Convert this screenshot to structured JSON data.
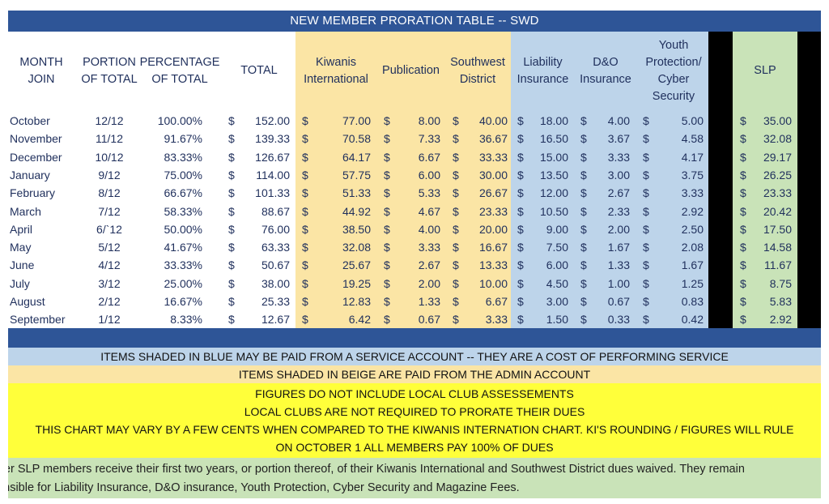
{
  "title": "NEW MEMBER PRORATION TABLE -- SWD",
  "headers": {
    "month": "MONTH JOIN",
    "portion": "PORTION OF TOTAL",
    "percentage": "PERCENTAGE OF TOTAL",
    "total": "TOTAL",
    "ki": "Kiwanis International",
    "pub": "Publication",
    "swd": "Southwest District",
    "liab": "Liability Insurance",
    "dno": "D&O Insurance",
    "youth": "Youth Protection/ Cyber Security",
    "slp": "SLP"
  },
  "currency_symbol": "$",
  "rows": [
    {
      "month": "October",
      "portion": "12/12",
      "pct": "100.00%",
      "total": "152.00",
      "ki": "77.00",
      "pub": "8.00",
      "swd": "40.00",
      "liab": "18.00",
      "dno": "4.00",
      "youth": "5.00",
      "slp": "35.00"
    },
    {
      "month": "November",
      "portion": "11/12",
      "pct": "91.67%",
      "total": "139.33",
      "ki": "70.58",
      "pub": "7.33",
      "swd": "36.67",
      "liab": "16.50",
      "dno": "3.67",
      "youth": "4.58",
      "slp": "32.08"
    },
    {
      "month": "December",
      "portion": "10/12",
      "pct": "83.33%",
      "total": "126.67",
      "ki": "64.17",
      "pub": "6.67",
      "swd": "33.33",
      "liab": "15.00",
      "dno": "3.33",
      "youth": "4.17",
      "slp": "29.17"
    },
    {
      "month": "January",
      "portion": "9/12",
      "pct": "75.00%",
      "total": "114.00",
      "ki": "57.75",
      "pub": "6.00",
      "swd": "30.00",
      "liab": "13.50",
      "dno": "3.00",
      "youth": "3.75",
      "slp": "26.25"
    },
    {
      "month": "February",
      "portion": "8/12",
      "pct": "66.67%",
      "total": "101.33",
      "ki": "51.33",
      "pub": "5.33",
      "swd": "26.67",
      "liab": "12.00",
      "dno": "2.67",
      "youth": "3.33",
      "slp": "23.33"
    },
    {
      "month": "March",
      "portion": "7/12",
      "pct": "58.33%",
      "total": "88.67",
      "ki": "44.92",
      "pub": "4.67",
      "swd": "23.33",
      "liab": "10.50",
      "dno": "2.33",
      "youth": "2.92",
      "slp": "20.42"
    },
    {
      "month": "April",
      "portion": "6/`12",
      "pct": "50.00%",
      "total": "76.00",
      "ki": "38.50",
      "pub": "4.00",
      "swd": "20.00",
      "liab": "9.00",
      "dno": "2.00",
      "youth": "2.50",
      "slp": "17.50"
    },
    {
      "month": "May",
      "portion": "5/12",
      "pct": "41.67%",
      "total": "63.33",
      "ki": "32.08",
      "pub": "3.33",
      "swd": "16.67",
      "liab": "7.50",
      "dno": "1.67",
      "youth": "2.08",
      "slp": "14.58"
    },
    {
      "month": "June",
      "portion": "4/12",
      "pct": "33.33%",
      "total": "50.67",
      "ki": "25.67",
      "pub": "2.67",
      "swd": "13.33",
      "liab": "6.00",
      "dno": "1.33",
      "youth": "1.67",
      "slp": "11.67"
    },
    {
      "month": "July",
      "portion": "3/12",
      "pct": "25.00%",
      "total": "38.00",
      "ki": "19.25",
      "pub": "2.00",
      "swd": "10.00",
      "liab": "4.50",
      "dno": "1.00",
      "youth": "1.25",
      "slp": "8.75"
    },
    {
      "month": "August",
      "portion": "2/12",
      "pct": "16.67%",
      "total": "25.33",
      "ki": "12.83",
      "pub": "1.33",
      "swd": "6.67",
      "liab": "3.00",
      "dno": "0.67",
      "youth": "0.83",
      "slp": "5.83"
    },
    {
      "month": "September",
      "portion": "1/12",
      "pct": "8.33%",
      "total": "12.67",
      "ki": "6.42",
      "pub": "0.67",
      "swd": "3.33",
      "liab": "1.50",
      "dno": "0.33",
      "youth": "0.42",
      "slp": "2.92"
    }
  ],
  "notes": {
    "blue": "ITEMS SHADED IN BLUE MAY BE PAID FROM A SERVICE ACCOUNT -- THEY ARE A COST OF PERFORMING SERVICE",
    "beige": "ITEMS SHADED IN BEIGE ARE PAID FROM THE ADMIN ACCOUNT",
    "yellow": [
      "FIGURES DO NOT INCLUDE LOCAL CLUB ASSESSEMENTS",
      "LOCAL CLUBS ARE NOT REQUIRED TO PRORATE THEIR DUES",
      "THIS CHART MAY VARY BY A FEW CENTS WHEN COMPARED TO THE KIWANIS INTERNATION CHART. KI'S ROUNDING / FIGURES WILL RULE",
      "ON OCTOBER 1 ALL MEMBERS PAY 100% OF DUES"
    ],
    "green": [
      "rmer SLP members receive their first two years, or portion thereof, of their Kiwanis International and Southwest District dues waived. They remain",
      "ponsible for Liability Insurance, D&O insurance, Youth Protection, Cyber Security and Magazine Fees."
    ]
  },
  "colors": {
    "title_bar": "#2e5597",
    "beige": "#fbe5a5",
    "blue": "#bdd4ea",
    "green": "#c9e3b8",
    "yellow": "#ffff3a",
    "header_text": "#1f2f5c"
  }
}
